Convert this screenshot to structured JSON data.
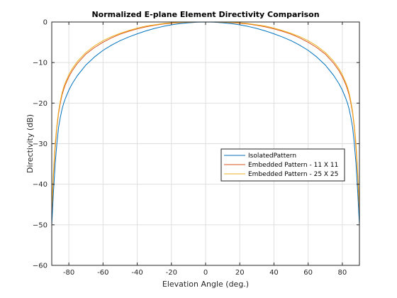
{
  "chart_data": {
    "type": "line",
    "title": "Normalized E-plane Element Directivity Comparison",
    "xlabel": "Elevation Angle (deg.)",
    "ylabel": "Directivity (dB)",
    "xlim": [
      -90,
      90
    ],
    "ylim": [
      -60,
      0
    ],
    "xticks": [
      -80,
      -60,
      -40,
      -20,
      0,
      20,
      40,
      60,
      80
    ],
    "yticks": [
      0,
      -10,
      -20,
      -30,
      -40,
      -50,
      -60
    ],
    "grid": true,
    "legend_position": "right-center",
    "x": [
      -90,
      -89,
      -88,
      -87,
      -86,
      -85,
      -84,
      -83,
      -82,
      -80,
      -78,
      -75,
      -70,
      -65,
      -60,
      -55,
      -50,
      -45,
      -40,
      -35,
      -30,
      -25,
      -20,
      -15,
      -10,
      -5,
      0,
      5,
      10,
      15,
      20,
      25,
      30,
      35,
      40,
      45,
      50,
      55,
      60,
      65,
      70,
      75,
      78,
      80,
      82,
      83,
      84,
      85,
      86,
      87,
      88,
      89,
      90
    ],
    "series": [
      {
        "name": "IsolatedPattern",
        "color": "#0072BD",
        "values": [
          -50,
          -42,
          -35,
          -30,
          -26,
          -23.5,
          -21.5,
          -20,
          -18.8,
          -16.8,
          -15.2,
          -13.2,
          -10.6,
          -8.6,
          -7.0,
          -5.7,
          -4.6,
          -3.7,
          -2.9,
          -2.2,
          -1.6,
          -1.1,
          -0.7,
          -0.4,
          -0.2,
          -0.05,
          0,
          -0.05,
          -0.2,
          -0.4,
          -0.7,
          -1.1,
          -1.6,
          -2.2,
          -2.9,
          -3.7,
          -4.6,
          -5.7,
          -7.0,
          -8.6,
          -10.6,
          -13.2,
          -15.2,
          -16.8,
          -18.8,
          -20,
          -21.5,
          -23.5,
          -26,
          -30,
          -35,
          -42,
          -50
        ]
      },
      {
        "name": "Embedded Pattern - 11 X 11",
        "color": "#D95319",
        "values": [
          -47,
          -38,
          -31,
          -26,
          -22.5,
          -20,
          -18,
          -16.6,
          -15.4,
          -13.5,
          -12,
          -10.2,
          -7.9,
          -6.3,
          -5.0,
          -3.9,
          -3.0,
          -2.3,
          -1.7,
          -1.2,
          -0.8,
          -0.5,
          -0.3,
          -0.15,
          -0.05,
          0,
          0,
          0,
          -0.05,
          -0.15,
          -0.3,
          -0.5,
          -0.8,
          -1.2,
          -1.7,
          -2.3,
          -3.0,
          -3.9,
          -5.0,
          -6.3,
          -7.9,
          -10.2,
          -12,
          -13.5,
          -15.4,
          -16.6,
          -18,
          -20,
          -22.5,
          -26,
          -31,
          -38,
          -47
        ]
      },
      {
        "name": "Embedded Pattern - 25 X 25",
        "color": "#EDB120",
        "values": [
          -46,
          -37,
          -30,
          -25.5,
          -22,
          -19.5,
          -17.5,
          -16,
          -14.9,
          -13,
          -11.5,
          -9.7,
          -7.5,
          -5.9,
          -4.6,
          -3.6,
          -2.8,
          -2.1,
          -1.5,
          -1.0,
          -0.7,
          -0.4,
          -0.2,
          -0.1,
          -0.03,
          0,
          0,
          0,
          -0.03,
          -0.1,
          -0.2,
          -0.4,
          -0.7,
          -1.0,
          -1.5,
          -2.1,
          -2.8,
          -3.6,
          -4.6,
          -5.9,
          -7.5,
          -9.7,
          -11.5,
          -13,
          -14.9,
          -16,
          -17.5,
          -19.5,
          -22,
          -25.5,
          -30,
          -37,
          -46
        ]
      }
    ]
  }
}
